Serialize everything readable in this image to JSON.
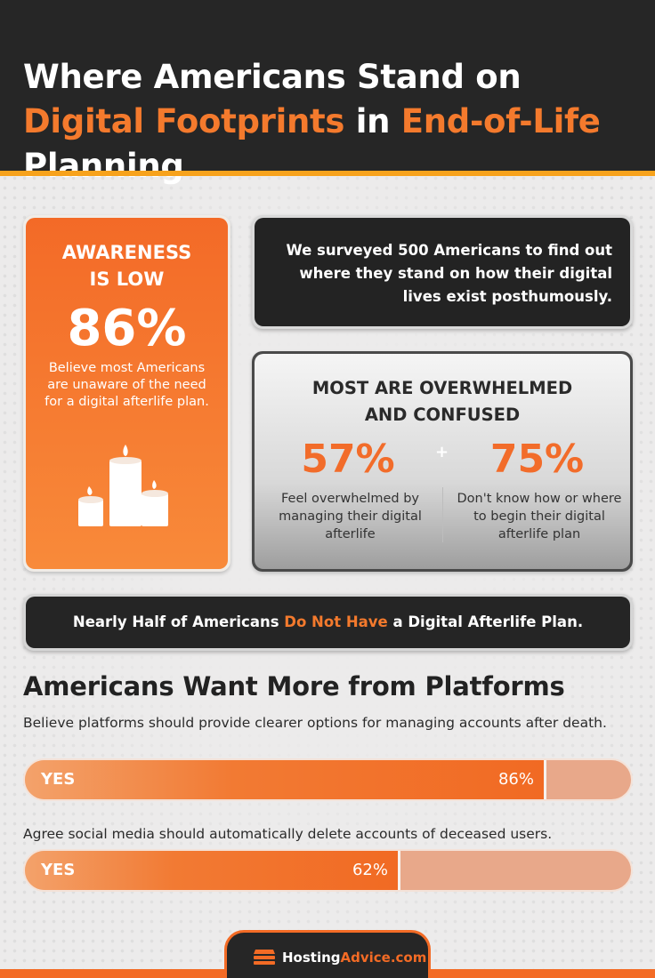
{
  "header": {
    "title_part1": "Where Americans Stand on ",
    "title_accent1": "Digital Footprints",
    "title_part2": " in ",
    "title_accent2": "End-of-Life",
    "title_part3": " Planning"
  },
  "awareness": {
    "heading_line1": "AWARENESS",
    "heading_line2": "IS LOW",
    "percent": "86%",
    "description": "Believe most Americans are unaware of the need for a digital afterlife plan.",
    "icon": "candles-icon"
  },
  "survey": {
    "text": "We surveyed 500 Americans to find out where they stand on how their digital lives exist posthumously."
  },
  "overwhelmed": {
    "heading_line1": "MOST ARE OVERWHELMED",
    "heading_line2": "AND CONFUSED",
    "plus": "+",
    "stats": [
      {
        "percent": "57%",
        "label": "Feel overwhelmed by managing their digital afterlife"
      },
      {
        "percent": "75%",
        "label": "Don't know how or where to begin their digital afterlife plan"
      }
    ]
  },
  "banner": {
    "part1": "Nearly Half of Americans ",
    "accent": "Do Not Have",
    "part2": " a Digital Afterlife Plan."
  },
  "platforms": {
    "title": "Americans Want More from Platforms"
  },
  "chart_data": {
    "type": "bar",
    "orientation": "horizontal",
    "title": "Americans Want More from Platforms",
    "xlim": [
      0,
      100
    ],
    "series_label": "YES",
    "categories": [
      "Believe platforms should provide clearer options for managing accounts after death.",
      "Agree social media should automatically delete accounts of deceased users."
    ],
    "values": [
      86,
      62
    ],
    "value_labels": [
      "86%",
      "62%"
    ],
    "bar_label": "YES"
  },
  "footer": {
    "brand_part1": "Hosting",
    "brand_part2": "Advice.com",
    "icon": "hostingadvice-logo-icon"
  },
  "colors": {
    "orange": "#f36b25",
    "dark": "#262626",
    "yellow_line": "#f7a21c"
  }
}
